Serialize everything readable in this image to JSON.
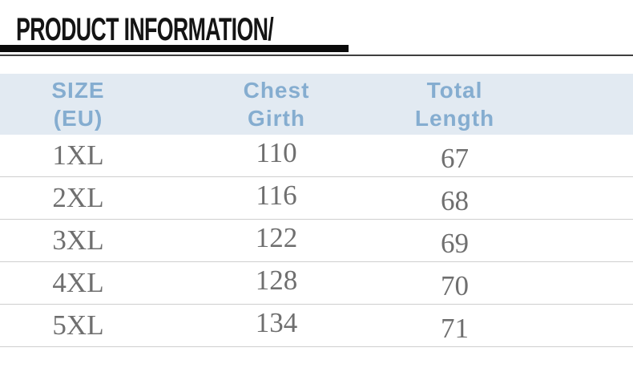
{
  "header": {
    "title": "PRODUCT INFORMATION/"
  },
  "table_header": {
    "cols": [
      {
        "line1": "SIZE",
        "line2": "(EU)"
      },
      {
        "line1": "Chest",
        "line2": "Girth"
      },
      {
        "line1": "Total",
        "line2": "Length"
      }
    ]
  },
  "chart_data": {
    "type": "table",
    "title": "PRODUCT INFORMATION/",
    "columns": [
      "SIZE (EU)",
      "Chest Girth",
      "Total Length"
    ],
    "rows": [
      [
        "1XL",
        110,
        67
      ],
      [
        "2XL",
        116,
        68
      ],
      [
        "3XL",
        122,
        69
      ],
      [
        "4XL",
        128,
        70
      ],
      [
        "5XL",
        134,
        71
      ]
    ]
  },
  "colors": {
    "header_bg": "#e2eaf2",
    "header_text": "#85add0",
    "body_text": "#6f6f6f",
    "row_divider": "#cfcfcf",
    "title_text": "#141414",
    "title_bar": "#0b0b0b",
    "title_line": "#3f3f3f"
  }
}
